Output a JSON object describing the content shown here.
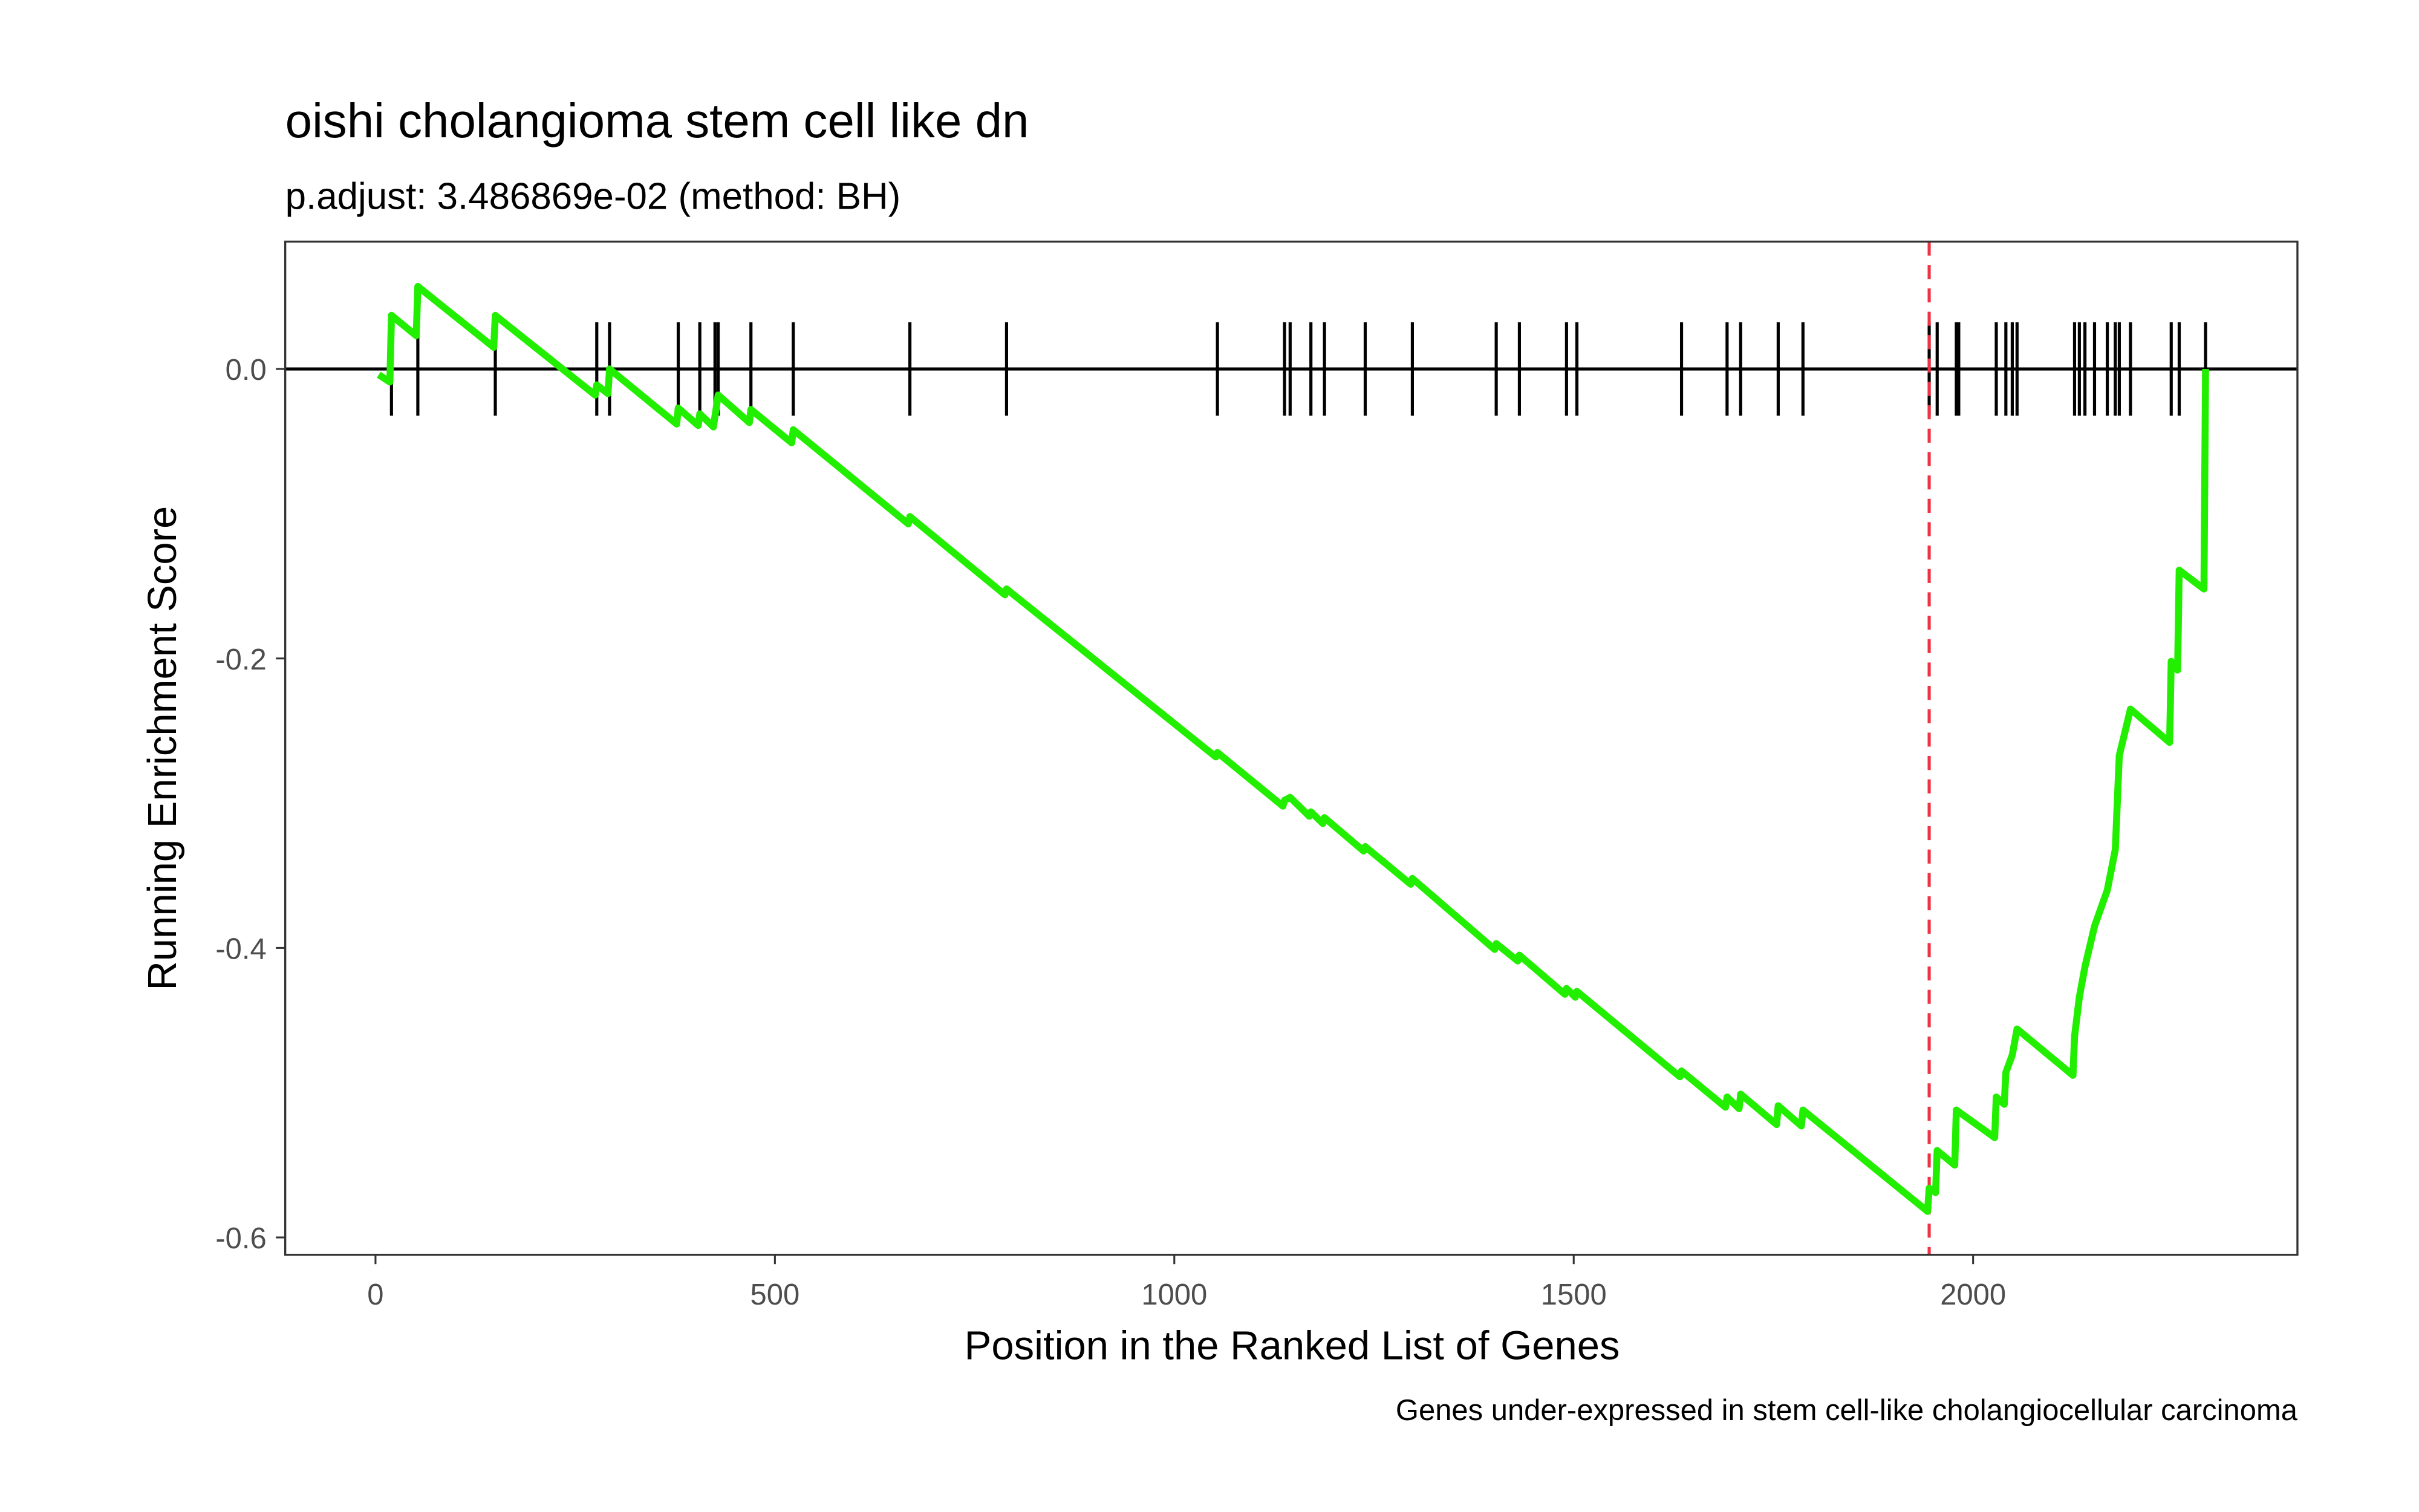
{
  "chart_data": {
    "type": "line",
    "title": "oishi cholangioma stem cell like dn",
    "subtitle": "p.adjust: 3.486869e-02 (method: BH)",
    "x_label": "Position in the Ranked List of Genes",
    "y_label": "Running Enrichment Score",
    "caption": "Genes under-expressed in stem cell-like cholangiocellular carcinoma",
    "xlim": [
      -113,
      2406
    ],
    "ylim": [
      -0.612,
      0.088
    ],
    "xticks": [
      0,
      500,
      1000,
      1500,
      2000
    ],
    "yticks": [
      {
        "value": 0,
        "label": "0.0"
      },
      -0.2,
      -0.4,
      -0.6
    ],
    "hline": 0,
    "vline": 1945,
    "vline_color": "#ee3344",
    "hit_color": "#000000",
    "series": [
      {
        "color": "#22ee00",
        "x": [
          4,
          18,
          20,
          51,
          53,
          148,
          150,
          275,
          277,
          291,
          293,
          377,
          379,
          404,
          406,
          423,
          429,
          468,
          470,
          521,
          523,
          667,
          669,
          788,
          790,
          1052,
          1054,
          1136,
          1138,
          1145,
          1169,
          1171,
          1186,
          1188,
          1237,
          1239,
          1296,
          1298,
          1401,
          1403,
          1430,
          1432,
          1489,
          1491,
          1502,
          1504,
          1633,
          1635,
          1690,
          1692,
          1707,
          1709,
          1754,
          1756,
          1785,
          1787,
          1943,
          1945,
          1953,
          1955,
          1977,
          1979,
          2027,
          2029,
          2039,
          2041,
          2049,
          2055,
          2125,
          2127,
          2133,
          2140,
          2152,
          2168,
          2178,
          2183,
          2197,
          2246,
          2248,
          2256,
          2258,
          2289,
          2291
        ],
        "values": [
          -0.004,
          -0.009,
          0.037,
          0.023,
          0.057,
          0.015,
          0.037,
          -0.018,
          -0.011,
          -0.017,
          0.0,
          -0.038,
          -0.027,
          -0.039,
          -0.031,
          -0.04,
          -0.018,
          -0.037,
          -0.028,
          -0.051,
          -0.042,
          -0.107,
          -0.102,
          -0.156,
          -0.152,
          -0.268,
          -0.265,
          -0.302,
          -0.298,
          -0.296,
          -0.309,
          -0.306,
          -0.314,
          -0.31,
          -0.333,
          -0.33,
          -0.356,
          -0.352,
          -0.401,
          -0.397,
          -0.409,
          -0.405,
          -0.432,
          -0.428,
          -0.434,
          -0.43,
          -0.489,
          -0.485,
          -0.51,
          -0.503,
          -0.511,
          -0.501,
          -0.522,
          -0.509,
          -0.523,
          -0.512,
          -0.582,
          -0.566,
          -0.569,
          -0.54,
          -0.55,
          -0.512,
          -0.531,
          -0.503,
          -0.508,
          -0.486,
          -0.474,
          -0.456,
          -0.488,
          -0.461,
          -0.434,
          -0.413,
          -0.385,
          -0.36,
          -0.332,
          -0.267,
          -0.235,
          -0.258,
          -0.202,
          -0.208,
          -0.139,
          -0.152,
          0.0
        ]
      }
    ],
    "hits": [
      20,
      53,
      150,
      277,
      293,
      379,
      406,
      425,
      429,
      470,
      523,
      669,
      790,
      1054,
      1138,
      1145,
      1171,
      1188,
      1239,
      1298,
      1403,
      1432,
      1491,
      1504,
      1635,
      1692,
      1709,
      1756,
      1787,
      1945,
      1955,
      1979,
      1982,
      2029,
      2041,
      2049,
      2055,
      2127,
      2133,
      2140,
      2152,
      2168,
      2178,
      2183,
      2197,
      2248,
      2258,
      2291
    ]
  }
}
